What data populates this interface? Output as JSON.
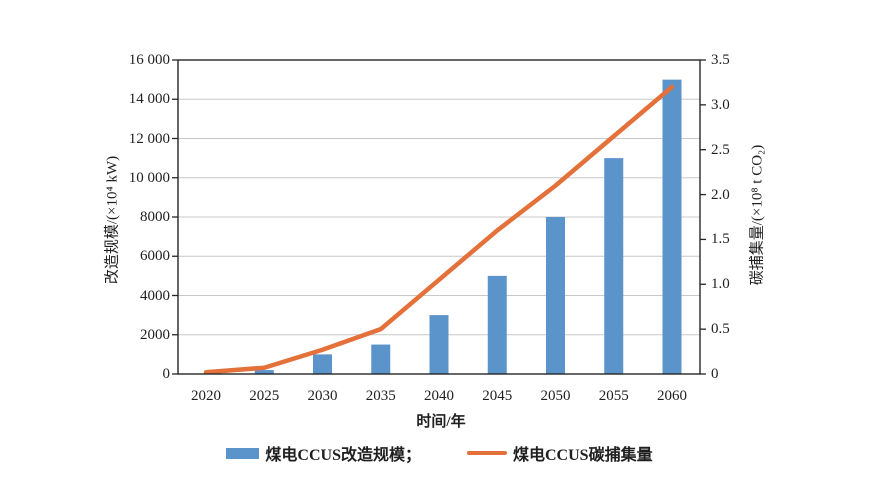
{
  "chart": {
    "left_axis": {
      "title": "改造规模/(×10⁴ kW)",
      "ticks": [
        "0",
        "2000",
        "4000",
        "6000",
        "8000",
        "10 000",
        "12 000",
        "14 000",
        "16 000"
      ]
    },
    "right_axis": {
      "title": "碳捕集量/(×10⁸ t CO₂)",
      "ticks": [
        "0",
        "0.5",
        "1.0",
        "1.5",
        "2.0",
        "2.5",
        "3.0",
        "3.5"
      ]
    },
    "x_axis": {
      "title": "时间/年",
      "categories": [
        "2020",
        "2025",
        "2030",
        "2035",
        "2040",
        "2045",
        "2050",
        "2055",
        "2060"
      ]
    },
    "legend": [
      {
        "label": "煤电CCUS改造规模；",
        "type": "bar"
      },
      {
        "label": "煤电CCUS碳捕集量",
        "type": "line"
      }
    ]
  },
  "chart_data": {
    "type": "bar",
    "title": "",
    "categories": [
      2020,
      2025,
      2030,
      2035,
      2040,
      2045,
      2050,
      2055,
      2060
    ],
    "series": [
      {
        "name": "煤电CCUS改造规模",
        "type": "bar",
        "axis": "left",
        "unit": "×10⁴ kW",
        "color": "#5b93cb",
        "values": [
          0,
          200,
          1000,
          1500,
          3000,
          5000,
          8000,
          11000,
          15000
        ]
      },
      {
        "name": "煤电CCUS碳捕集量",
        "type": "line",
        "axis": "right",
        "unit": "×10⁸ t CO₂",
        "color": "#e4703a",
        "values": [
          0.02,
          0.07,
          0.27,
          0.5,
          1.05,
          1.6,
          2.1,
          2.65,
          3.2
        ]
      }
    ],
    "xlabel": "时间/年",
    "ylabel_left": "改造规模/(×10⁴ kW)",
    "ylabel_right": "碳捕集量/(×10⁸ t CO₂)",
    "left_ylim": [
      0,
      16000
    ],
    "left_tick_step": 2000,
    "right_ylim": [
      0,
      3.5
    ],
    "right_tick_step": 0.5,
    "grid": true,
    "legend_position": "bottom",
    "colors": {
      "grid": "#c8c8c8",
      "axis": "#262626",
      "text": "#1f1f1f"
    }
  }
}
